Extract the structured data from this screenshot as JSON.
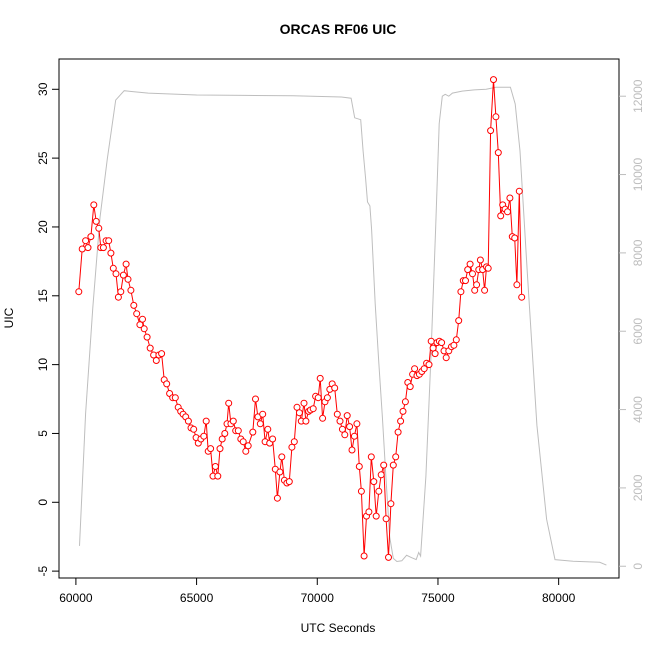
{
  "chart_data": {
    "type": "line",
    "title": "ORCAS RF06 UIC",
    "xlabel": "UTC Seconds",
    "ylabel": "UIC",
    "xlim": [
      59300,
      82500
    ],
    "ylim": [
      -5.5,
      32.2
    ],
    "y2lim": [
      -300,
      12950
    ],
    "x_ticks": [
      60000,
      65000,
      70000,
      75000,
      80000
    ],
    "y_ticks": [
      -5,
      0,
      5,
      10,
      15,
      20,
      25,
      30
    ],
    "y2_ticks": [
      0,
      2000,
      4000,
      6000,
      8000,
      10000,
      12000
    ],
    "grid": false,
    "legend": "none",
    "series": [
      {
        "role": "uic",
        "color": "#ff0000",
        "marker": "open-circle",
        "points": [
          [
            60120,
            15.3
          ],
          [
            60260,
            18.4
          ],
          [
            60400,
            19.0
          ],
          [
            60500,
            18.5
          ],
          [
            60620,
            19.3
          ],
          [
            60740,
            21.6
          ],
          [
            60840,
            20.4
          ],
          [
            60950,
            19.9
          ],
          [
            61030,
            18.5
          ],
          [
            61140,
            18.5
          ],
          [
            61250,
            19.0
          ],
          [
            61360,
            19.0
          ],
          [
            61450,
            18.1
          ],
          [
            61550,
            17.0
          ],
          [
            61660,
            16.6
          ],
          [
            61760,
            14.9
          ],
          [
            61860,
            15.3
          ],
          [
            61970,
            16.5
          ],
          [
            62080,
            17.3
          ],
          [
            62160,
            16.2
          ],
          [
            62280,
            15.4
          ],
          [
            62400,
            14.3
          ],
          [
            62520,
            13.7
          ],
          [
            62650,
            12.9
          ],
          [
            62760,
            13.3
          ],
          [
            62830,
            12.6
          ],
          [
            62950,
            12.0
          ],
          [
            63080,
            11.2
          ],
          [
            63220,
            10.7
          ],
          [
            63330,
            10.3
          ],
          [
            63440,
            10.7
          ],
          [
            63550,
            10.8
          ],
          [
            63660,
            8.9
          ],
          [
            63760,
            8.6
          ],
          [
            63880,
            7.9
          ],
          [
            64010,
            7.6
          ],
          [
            64120,
            7.6
          ],
          [
            64240,
            6.9
          ],
          [
            64340,
            6.6
          ],
          [
            64440,
            6.4
          ],
          [
            64550,
            6.2
          ],
          [
            64660,
            5.9
          ],
          [
            64770,
            5.4
          ],
          [
            64880,
            5.3
          ],
          [
            64980,
            4.7
          ],
          [
            65070,
            4.3
          ],
          [
            65180,
            4.6
          ],
          [
            65300,
            4.8
          ],
          [
            65400,
            5.9
          ],
          [
            65480,
            3.7
          ],
          [
            65580,
            3.9
          ],
          [
            65680,
            1.9
          ],
          [
            65780,
            2.6
          ],
          [
            65880,
            1.9
          ],
          [
            65970,
            3.9
          ],
          [
            66060,
            4.6
          ],
          [
            66170,
            5.0
          ],
          [
            66260,
            5.7
          ],
          [
            66330,
            7.2
          ],
          [
            66420,
            5.7
          ],
          [
            66520,
            5.9
          ],
          [
            66620,
            5.2
          ],
          [
            66730,
            5.2
          ],
          [
            66830,
            4.6
          ],
          [
            66930,
            4.4
          ],
          [
            67040,
            3.7
          ],
          [
            67140,
            4.1
          ],
          [
            67330,
            5.1
          ],
          [
            67440,
            7.5
          ],
          [
            67540,
            6.2
          ],
          [
            67640,
            5.7
          ],
          [
            67740,
            6.4
          ],
          [
            67840,
            4.4
          ],
          [
            67950,
            5.3
          ],
          [
            68030,
            4.3
          ],
          [
            68150,
            4.6
          ],
          [
            68260,
            2.4
          ],
          [
            68350,
            0.3
          ],
          [
            68450,
            2.2
          ],
          [
            68530,
            3.3
          ],
          [
            68640,
            1.6
          ],
          [
            68740,
            1.4
          ],
          [
            68840,
            1.5
          ],
          [
            68950,
            4.0
          ],
          [
            69050,
            4.4
          ],
          [
            69160,
            6.9
          ],
          [
            69260,
            6.5
          ],
          [
            69340,
            5.9
          ],
          [
            69450,
            7.2
          ],
          [
            69530,
            5.9
          ],
          [
            69640,
            6.6
          ],
          [
            69720,
            6.7
          ],
          [
            69830,
            6.8
          ],
          [
            69930,
            7.7
          ],
          [
            70040,
            7.6
          ],
          [
            70120,
            9.0
          ],
          [
            70220,
            6.1
          ],
          [
            70320,
            7.3
          ],
          [
            70420,
            7.6
          ],
          [
            70520,
            8.2
          ],
          [
            70620,
            8.6
          ],
          [
            70720,
            8.3
          ],
          [
            70830,
            6.4
          ],
          [
            70940,
            5.9
          ],
          [
            71040,
            5.3
          ],
          [
            71140,
            4.9
          ],
          [
            71240,
            6.3
          ],
          [
            71340,
            5.5
          ],
          [
            71440,
            3.8
          ],
          [
            71540,
            4.8
          ],
          [
            71640,
            5.7
          ],
          [
            71740,
            2.6
          ],
          [
            71830,
            0.8
          ],
          [
            71940,
            -3.9
          ],
          [
            72040,
            -1.0
          ],
          [
            72140,
            -0.7
          ],
          [
            72240,
            3.3
          ],
          [
            72340,
            1.5
          ],
          [
            72440,
            -1.0
          ],
          [
            72550,
            0.8
          ],
          [
            72650,
            2.0
          ],
          [
            72750,
            2.7
          ],
          [
            72850,
            -1.2
          ],
          [
            72950,
            -4.0
          ],
          [
            73050,
            -0.1
          ],
          [
            73150,
            2.7
          ],
          [
            73250,
            3.3
          ],
          [
            73350,
            5.1
          ],
          [
            73450,
            5.9
          ],
          [
            73550,
            6.6
          ],
          [
            73650,
            7.3
          ],
          [
            73750,
            8.7
          ],
          [
            73850,
            8.4
          ],
          [
            73950,
            9.3
          ],
          [
            74030,
            9.7
          ],
          [
            74130,
            9.2
          ],
          [
            74230,
            9.3
          ],
          [
            74330,
            9.5
          ],
          [
            74430,
            9.7
          ],
          [
            74530,
            10.1
          ],
          [
            74630,
            10.0
          ],
          [
            74720,
            11.7
          ],
          [
            74800,
            11.2
          ],
          [
            74880,
            10.8
          ],
          [
            74960,
            11.6
          ],
          [
            75060,
            11.7
          ],
          [
            75150,
            11.6
          ],
          [
            75250,
            11.0
          ],
          [
            75340,
            10.5
          ],
          [
            75450,
            11.0
          ],
          [
            75560,
            11.3
          ],
          [
            75660,
            11.4
          ],
          [
            75760,
            11.8
          ],
          [
            75860,
            13.2
          ],
          [
            75950,
            15.3
          ],
          [
            76050,
            16.1
          ],
          [
            76140,
            16.1
          ],
          [
            76230,
            16.9
          ],
          [
            76330,
            17.3
          ],
          [
            76430,
            16.6
          ],
          [
            76520,
            15.4
          ],
          [
            76600,
            15.8
          ],
          [
            76690,
            16.9
          ],
          [
            76760,
            17.6
          ],
          [
            76850,
            16.9
          ],
          [
            76930,
            15.4
          ],
          [
            77010,
            17.1
          ],
          [
            77080,
            17.0
          ],
          [
            77180,
            27.0
          ],
          [
            77300,
            30.7
          ],
          [
            77400,
            28.0
          ],
          [
            77500,
            25.4
          ],
          [
            77600,
            20.8
          ],
          [
            77680,
            21.6
          ],
          [
            77780,
            21.3
          ],
          [
            77880,
            21.1
          ],
          [
            77980,
            22.1
          ],
          [
            78080,
            19.3
          ],
          [
            78180,
            19.2
          ],
          [
            78270,
            15.8
          ],
          [
            78370,
            22.6
          ],
          [
            78470,
            14.9
          ]
        ]
      },
      {
        "role": "altitude",
        "color": "#bebebe",
        "axis": "right",
        "points": [
          [
            60150,
            520
          ],
          [
            60400,
            3900
          ],
          [
            60700,
            6600
          ],
          [
            61000,
            8900
          ],
          [
            61300,
            10400
          ],
          [
            61650,
            11900
          ],
          [
            62000,
            12140
          ],
          [
            62300,
            12120
          ],
          [
            63000,
            12080
          ],
          [
            65000,
            12030
          ],
          [
            67000,
            12020
          ],
          [
            69000,
            12010
          ],
          [
            71000,
            11980
          ],
          [
            71400,
            11950
          ],
          [
            71550,
            11450
          ],
          [
            71800,
            11400
          ],
          [
            71900,
            10600
          ],
          [
            72000,
            9900
          ],
          [
            72080,
            9300
          ],
          [
            72180,
            9200
          ],
          [
            72250,
            8600
          ],
          [
            72400,
            6700
          ],
          [
            72550,
            5200
          ],
          [
            72700,
            3800
          ],
          [
            72850,
            2200
          ],
          [
            73000,
            750
          ],
          [
            73150,
            200
          ],
          [
            73300,
            120
          ],
          [
            73500,
            140
          ],
          [
            73700,
            280
          ],
          [
            73900,
            220
          ],
          [
            74100,
            170
          ],
          [
            74200,
            350
          ],
          [
            74280,
            260
          ],
          [
            74500,
            2300
          ],
          [
            74700,
            5200
          ],
          [
            74900,
            8600
          ],
          [
            75050,
            11300
          ],
          [
            75180,
            12000
          ],
          [
            75300,
            12050
          ],
          [
            75450,
            12000
          ],
          [
            75600,
            12080
          ],
          [
            76000,
            12130
          ],
          [
            76500,
            12160
          ],
          [
            77000,
            12180
          ],
          [
            77400,
            12230
          ],
          [
            78000,
            12230
          ],
          [
            78200,
            11800
          ],
          [
            78400,
            10600
          ],
          [
            78700,
            7500
          ],
          [
            79100,
            3600
          ],
          [
            79500,
            1200
          ],
          [
            79850,
            170
          ],
          [
            80600,
            130
          ],
          [
            81700,
            100
          ],
          [
            81980,
            30
          ]
        ]
      }
    ]
  }
}
